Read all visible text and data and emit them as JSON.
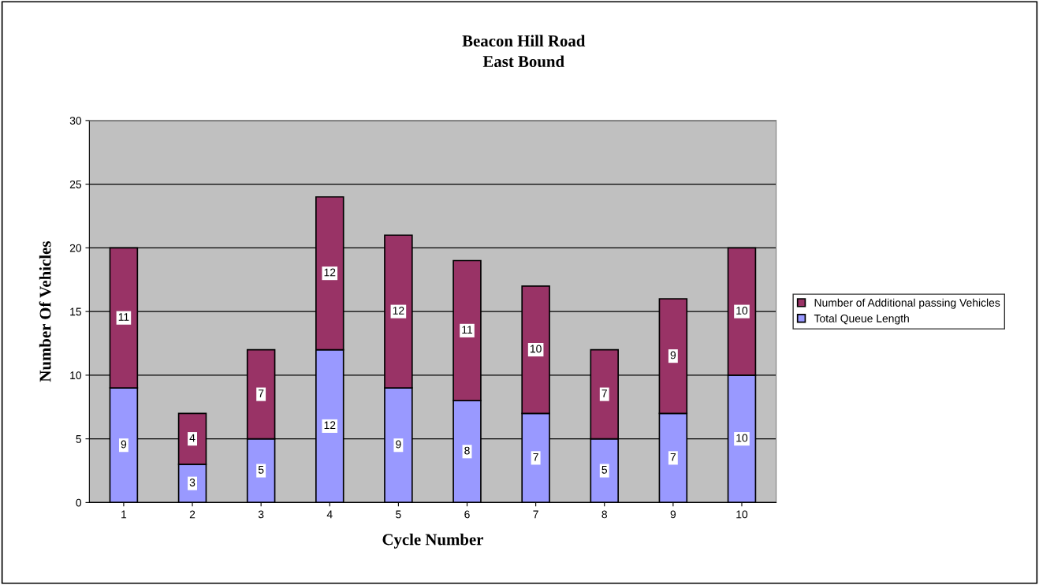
{
  "chart_data": {
    "type": "bar",
    "title": "Beacon Hill Road\nEast Bound",
    "xlabel": "Cycle Number",
    "ylabel": "Number Of Vehicles",
    "categories": [
      "1",
      "2",
      "3",
      "4",
      "5",
      "6",
      "7",
      "8",
      "9",
      "10"
    ],
    "stacked": true,
    "series": [
      {
        "name": "Total Queue Length",
        "color": "#9999ff",
        "values": [
          9,
          3,
          5,
          12,
          9,
          8,
          7,
          5,
          7,
          10
        ]
      },
      {
        "name": "Number of Additional passing Vehicles",
        "color": "#993366",
        "values": [
          11,
          4,
          7,
          12,
          12,
          11,
          10,
          7,
          9,
          10
        ]
      }
    ],
    "ylim": [
      0,
      30
    ],
    "yticks": [
      0,
      5,
      10,
      15,
      20,
      25,
      30
    ],
    "grid": "y",
    "legend": "right",
    "data_labels": true
  }
}
